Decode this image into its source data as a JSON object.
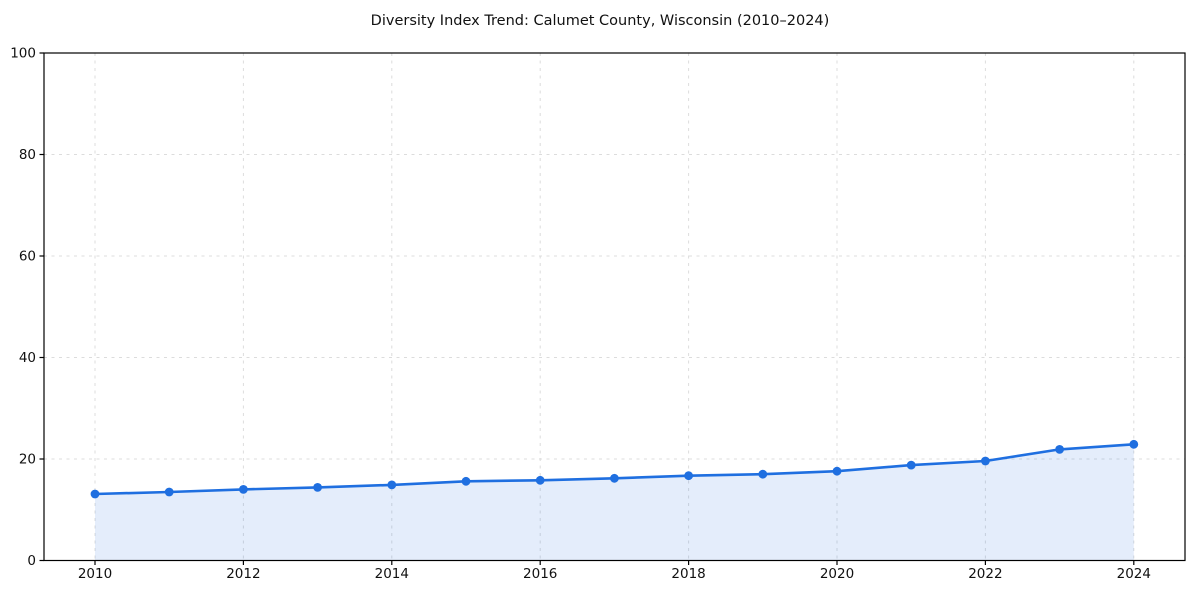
{
  "figure": {
    "background_color": "#ffffff"
  },
  "chart_data": {
    "type": "line",
    "title": "Diversity Index Trend: Calumet County, Wisconsin (2010–2024)",
    "xlabel": "",
    "ylabel": "",
    "x": [
      2010,
      2011,
      2012,
      2013,
      2014,
      2015,
      2016,
      2017,
      2018,
      2019,
      2020,
      2021,
      2022,
      2023,
      2024
    ],
    "series": [
      {
        "name": "Diversity Index",
        "values": [
          13.1,
          13.5,
          14.0,
          14.4,
          14.9,
          15.6,
          15.8,
          16.2,
          16.7,
          17.0,
          17.6,
          18.8,
          19.6,
          21.9,
          22.9
        ]
      }
    ],
    "xlim": [
      2009.3,
      2024.7
    ],
    "ylim": [
      0,
      100
    ],
    "xticks": [
      2010,
      2012,
      2014,
      2016,
      2018,
      2020,
      2022,
      2024
    ],
    "yticks": [
      0,
      20,
      40,
      60,
      80,
      100
    ],
    "grid": "dashed",
    "legend": "none",
    "marker": "circle",
    "area_fill": true,
    "colors": {
      "line": "#1f6fe0",
      "marker": "#1f6fe0",
      "area_fill": "rgba(31, 111, 224, 0.12)",
      "grid": "#dcdcdc",
      "axis_border": "#000000",
      "tick_text": "#111111",
      "title_text": "#111111"
    }
  }
}
